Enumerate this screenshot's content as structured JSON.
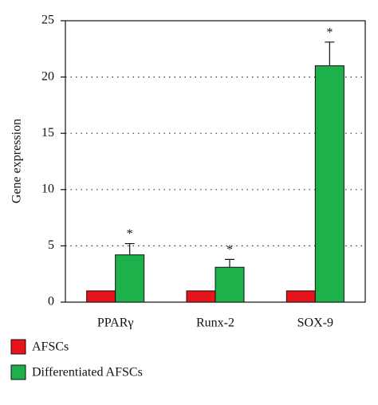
{
  "chart_data": {
    "type": "bar",
    "y_label": "Gene expression",
    "categories": [
      "PPARγ",
      "Runx-2",
      "SOX-9"
    ],
    "series": [
      {
        "name": "AFSCs",
        "color": "#e8141b",
        "values": [
          1,
          1,
          1
        ]
      },
      {
        "name": "Differentiated AFSCs",
        "color": "#1db04b",
        "values": [
          4.2,
          3.1,
          21
        ],
        "errors": [
          1.0,
          0.7,
          2.1
        ]
      }
    ],
    "annotations": [
      "*",
      "*",
      "*"
    ],
    "ylim": [
      0,
      25
    ],
    "yticks": [
      0,
      5,
      10,
      15,
      20,
      25
    ],
    "grid": true
  }
}
